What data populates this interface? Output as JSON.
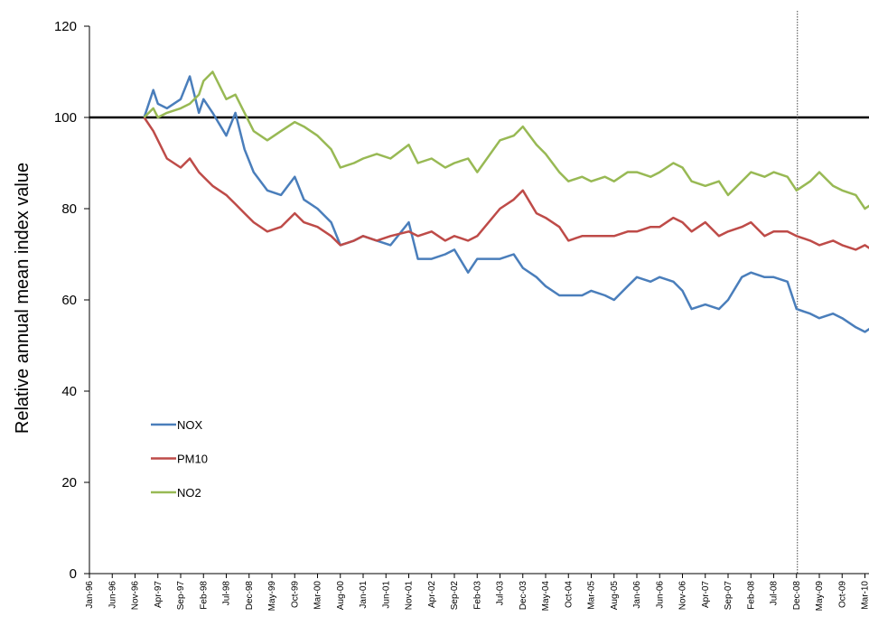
{
  "chart_data": {
    "type": "line",
    "title": "",
    "xlabel": "",
    "ylabel": "Relative annual mean index value",
    "ylim": [
      0,
      120
    ],
    "yticks": [
      "0",
      "20",
      "40",
      "60",
      "80",
      "100",
      "120"
    ],
    "xticks": [
      "Jan-96",
      "Jun-96",
      "Nov-96",
      "Apr-97",
      "Sep-97",
      "Feb-98",
      "Jul-98",
      "Dec-98",
      "May-99",
      "Oct-99",
      "Mar-00",
      "Aug-00",
      "Jan-01",
      "Jun-01",
      "Nov-01",
      "Apr-02",
      "Sep-02",
      "Feb-03",
      "Jul-03",
      "Dec-03",
      "May-04",
      "Oct-04",
      "Mar-05",
      "Aug-05",
      "Jan-06",
      "Jun-06",
      "Nov-06",
      "Apr-07",
      "Sep-07",
      "Feb-08",
      "Jul-08",
      "Dec-08",
      "May-09",
      "Oct-09",
      "Mar-10"
    ],
    "reference_line": {
      "y": 100,
      "color": "#000000"
    },
    "vertical_marker": {
      "x": "Dec-08",
      "style": "dotted"
    },
    "grid": false,
    "legend_position": "lower-left",
    "x_dates": [
      "Jan-97",
      "Mar-97",
      "Apr-97",
      "Jun-97",
      "Sep-97",
      "Nov-97",
      "Jan-98",
      "Feb-98",
      "Apr-98",
      "Jul-98",
      "Sep-98",
      "Nov-98",
      "Jan-99",
      "Apr-99",
      "Jul-99",
      "Oct-99",
      "Dec-99",
      "Mar-00",
      "Jun-00",
      "Aug-00",
      "Nov-00",
      "Jan-01",
      "Apr-01",
      "Jul-01",
      "Nov-01",
      "Jan-02",
      "Apr-02",
      "Jul-02",
      "Sep-02",
      "Dec-02",
      "Feb-03",
      "Jul-03",
      "Oct-03",
      "Dec-03",
      "Mar-04",
      "May-04",
      "Aug-04",
      "Oct-04",
      "Jan-05",
      "Mar-05",
      "Jun-05",
      "Aug-05",
      "Nov-05",
      "Jan-06",
      "Apr-06",
      "Jun-06",
      "Sep-06",
      "Nov-06",
      "Jan-07",
      "Apr-07",
      "Jul-07",
      "Sep-07",
      "Dec-07",
      "Feb-08",
      "May-08",
      "Jul-08",
      "Oct-08",
      "Dec-08",
      "Mar-09",
      "May-09",
      "Aug-09",
      "Oct-09",
      "Jan-10",
      "Mar-10",
      "Jun-10"
    ],
    "series": [
      {
        "name": "NOX",
        "color": "#4a7ebb",
        "values": [
          100,
          106,
          103,
          102,
          104,
          109,
          101,
          104,
          101,
          96,
          101,
          93,
          88,
          84,
          83,
          87,
          82,
          80,
          77,
          72,
          73,
          74,
          73,
          72,
          77,
          69,
          69,
          70,
          71,
          66,
          69,
          69,
          70,
          67,
          65,
          63,
          61,
          61,
          61,
          62,
          61,
          60,
          63,
          65,
          64,
          65,
          64,
          62,
          58,
          59,
          58,
          60,
          65,
          66,
          65,
          65,
          64,
          58,
          57,
          56,
          57,
          56,
          54,
          53,
          55
        ]
      },
      {
        "name": "PM10",
        "color": "#be4b48",
        "values": [
          100,
          97,
          95,
          91,
          89,
          91,
          88,
          87,
          85,
          83,
          81,
          79,
          77,
          75,
          76,
          79,
          77,
          76,
          74,
          72,
          73,
          74,
          73,
          74,
          75,
          74,
          75,
          73,
          74,
          73,
          74,
          80,
          82,
          84,
          79,
          78,
          76,
          73,
          74,
          74,
          74,
          74,
          75,
          75,
          76,
          76,
          78,
          77,
          75,
          77,
          74,
          75,
          76,
          77,
          74,
          75,
          75,
          74,
          73,
          72,
          73,
          72,
          71,
          72,
          70
        ]
      },
      {
        "name": "NO2",
        "color": "#98b954",
        "values": [
          100,
          102,
          100,
          101,
          102,
          103,
          105,
          108,
          110,
          104,
          105,
          101,
          97,
          95,
          97,
          99,
          98,
          96,
          93,
          89,
          90,
          91,
          92,
          91,
          94,
          90,
          91,
          89,
          90,
          91,
          88,
          95,
          96,
          98,
          94,
          92,
          88,
          86,
          87,
          86,
          87,
          86,
          88,
          88,
          87,
          88,
          90,
          89,
          86,
          85,
          86,
          83,
          86,
          88,
          87,
          88,
          87,
          84,
          86,
          88,
          85,
          84,
          83,
          80,
          82
        ]
      }
    ]
  }
}
